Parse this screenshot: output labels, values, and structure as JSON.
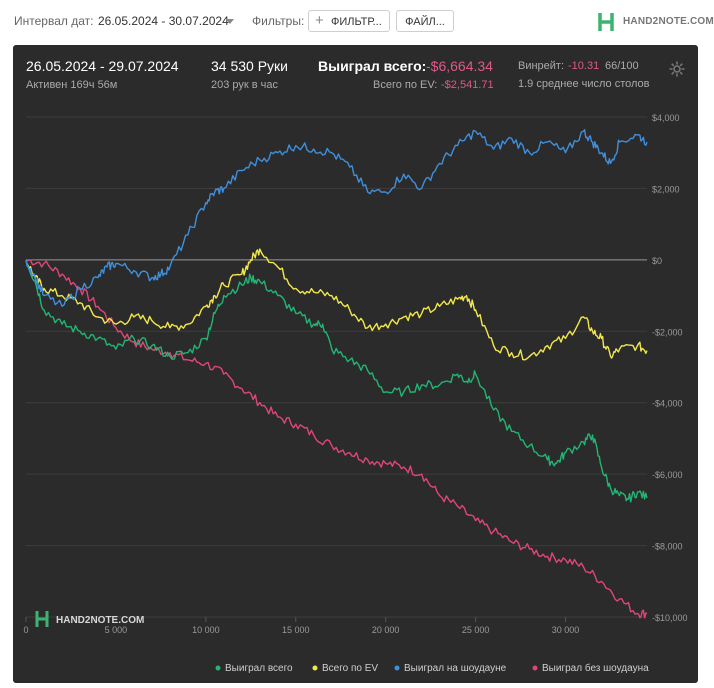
{
  "toolbar": {
    "interval_label": "Интервал дат:",
    "interval_value": "26.05.2024 - 30.07.2024",
    "filters_label": "Фильтры:",
    "filter_button": "ФИЛЬТР...",
    "file_button": "ФАЙЛ..."
  },
  "brand": {
    "text": "HAND2NOTE.COM",
    "accent": "#3cb371"
  },
  "summary": {
    "date_range": "26.05.2024 - 29.07.2024",
    "active": "Активен 169ч 56м",
    "hands": "34 530 Руки",
    "hands_per_hour": "203 рук в час",
    "won_total_label": "Выиграл всего:",
    "won_total_value": "-$6,664.34",
    "ev_label": "Всего по EV:",
    "ev_value": "-$2,541.71",
    "winrate_label": "Винрейт:",
    "winrate_value": "-10.31",
    "winrate_unit": "66/100",
    "tables": "1.9 среднее число столов",
    "settings_icon": "gear-icon"
  },
  "colors": {
    "won": "#22b573",
    "ev": "#f2e84b",
    "showdown": "#3f8fdc",
    "nonshowdown": "#e0457a",
    "background": "#2b2b2b"
  },
  "chart_data": {
    "type": "line",
    "xlabel": "",
    "ylabel": "",
    "xlim": [
      0,
      34530
    ],
    "ylim": [
      -10000,
      4000
    ],
    "x_ticks": [
      0,
      5000,
      10000,
      15000,
      20000,
      25000,
      30000
    ],
    "x_tick_labels": [
      "0",
      "5 000",
      "10 000",
      "15 000",
      "20 000",
      "25 000",
      "30 000"
    ],
    "y_ticks": [
      4000,
      2000,
      0,
      -2000,
      -4000,
      -6000,
      -8000,
      -10000
    ],
    "y_tick_labels": [
      "$4,000",
      "$2,000",
      "$0",
      "-$2,000",
      "-$4,000",
      "-$6,000",
      "-$8,000",
      "-$10,000"
    ],
    "grid": true,
    "legend_position": "bottom",
    "watermark": "HAND2NOTE.COM",
    "series": [
      {
        "name": "Выиграл всего",
        "color": "#22b573",
        "x": [
          0,
          500,
          1000,
          2000,
          3000,
          4000,
          5000,
          6000,
          7000,
          8000,
          9000,
          10000,
          10500,
          11000,
          12000,
          12500,
          13000,
          14000,
          15000,
          16000,
          16500,
          17000,
          18000,
          19000,
          20000,
          21000,
          22000,
          23000,
          24000,
          24500,
          25000,
          26000,
          27000,
          28000,
          29000,
          29500,
          30000,
          31000,
          31500,
          32000,
          32500,
          33000,
          33500,
          34000,
          34530
        ],
        "y": [
          0,
          -600,
          -1400,
          -1800,
          -2000,
          -2200,
          -2500,
          -2200,
          -2400,
          -2700,
          -2600,
          -2200,
          -1500,
          -1000,
          -700,
          -500,
          -600,
          -1000,
          -1500,
          -1800,
          -1800,
          -2500,
          -2800,
          -3100,
          -3700,
          -3700,
          -3500,
          -3500,
          -3200,
          -3400,
          -3200,
          -4200,
          -4800,
          -5200,
          -5600,
          -5700,
          -5400,
          -5100,
          -4900,
          -5800,
          -6400,
          -6600,
          -6700,
          -6500,
          -6664
        ]
      },
      {
        "name": "Всего по EV",
        "color": "#f2e84b",
        "x": [
          0,
          500,
          1000,
          2000,
          3000,
          4000,
          5000,
          6000,
          7000,
          8000,
          9000,
          10000,
          10500,
          11000,
          12000,
          12500,
          13000,
          14000,
          15000,
          16000,
          17000,
          18000,
          19000,
          20000,
          21000,
          22000,
          23000,
          24000,
          24500,
          25000,
          26000,
          27000,
          28000,
          29000,
          30000,
          31000,
          31500,
          32000,
          32500,
          33000,
          34000,
          34530
        ],
        "y": [
          0,
          -500,
          -800,
          -1000,
          -1200,
          -1600,
          -1800,
          -1600,
          -1700,
          -1900,
          -1800,
          -1300,
          -1000,
          -700,
          -400,
          0,
          300,
          -200,
          -800,
          -900,
          -1000,
          -1400,
          -1900,
          -1800,
          -1600,
          -1500,
          -1300,
          -1100,
          -1000,
          -1400,
          -2400,
          -2600,
          -2700,
          -2400,
          -2200,
          -1600,
          -2000,
          -2200,
          -2700,
          -2500,
          -2400,
          -2542
        ]
      },
      {
        "name": "Выиграл на шоудауне",
        "color": "#3f8fdc",
        "x": [
          0,
          500,
          1000,
          2000,
          3000,
          4000,
          4500,
          5000,
          6000,
          7000,
          7500,
          8000,
          9000,
          10000,
          10500,
          11000,
          12000,
          13000,
          14000,
          15000,
          16000,
          17000,
          18000,
          19000,
          20000,
          21000,
          22000,
          23000,
          24000,
          25000,
          26000,
          27000,
          28000,
          29000,
          30000,
          31000,
          31500,
          32000,
          32500,
          33000,
          34000,
          34530
        ],
        "y": [
          0,
          -500,
          -1000,
          -1300,
          -800,
          -500,
          -200,
          -100,
          -300,
          -500,
          -400,
          -200,
          700,
          1600,
          1900,
          2000,
          2500,
          2800,
          3000,
          3200,
          3100,
          3000,
          2600,
          1900,
          1900,
          2400,
          2000,
          2700,
          3200,
          3600,
          3100,
          3400,
          3000,
          3300,
          3000,
          3600,
          3300,
          3000,
          2700,
          3300,
          3500,
          3300
        ]
      },
      {
        "name": "Выиграл без шоудауна",
        "color": "#e0457a",
        "x": [
          0,
          1000,
          2000,
          3000,
          4000,
          5000,
          6000,
          7000,
          8000,
          9000,
          10000,
          11000,
          12000,
          13000,
          14000,
          15000,
          16000,
          17000,
          18000,
          19000,
          20000,
          21000,
          22000,
          23000,
          24000,
          25000,
          26000,
          27000,
          28000,
          29000,
          30000,
          31000,
          32000,
          33000,
          34000,
          34530
        ],
        "y": [
          0,
          -100,
          -400,
          -800,
          -1300,
          -1900,
          -2300,
          -2500,
          -2600,
          -2800,
          -2900,
          -3200,
          -3600,
          -4000,
          -4400,
          -4600,
          -4900,
          -5200,
          -5400,
          -5600,
          -5700,
          -5800,
          -6000,
          -6600,
          -6900,
          -7300,
          -7600,
          -7900,
          -8100,
          -8300,
          -8400,
          -8600,
          -9000,
          -9500,
          -9900,
          -9900
        ]
      }
    ]
  }
}
